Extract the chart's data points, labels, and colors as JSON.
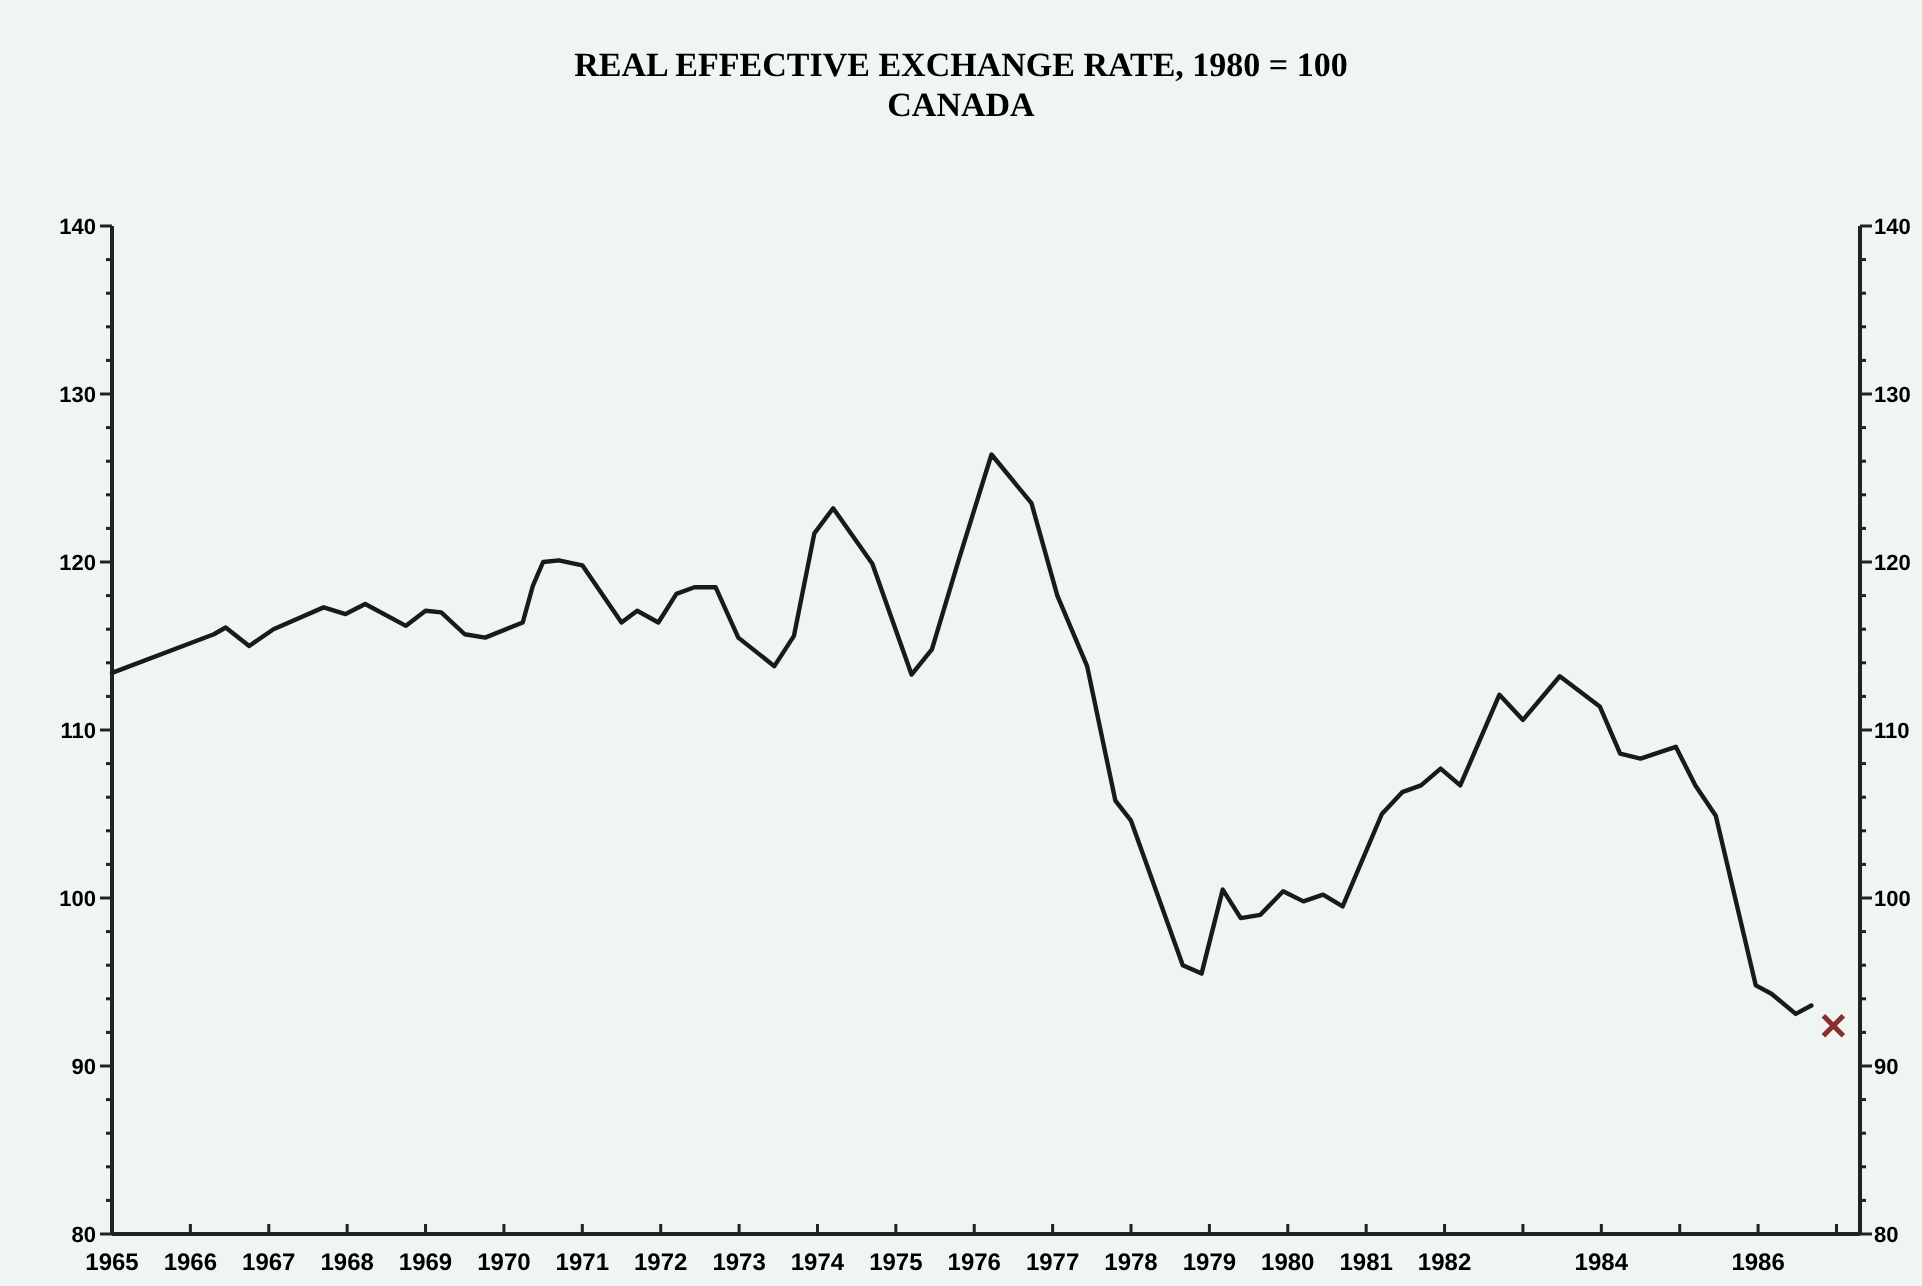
{
  "chart_data": {
    "type": "line",
    "title": "REAL EFFECTIVE EXCHANGE RATE, 1980 = 100",
    "subtitle": "CANADA",
    "xlim": [
      1965,
      1987.3
    ],
    "xticks": [
      {
        "value": 1965,
        "label": "1965"
      },
      {
        "value": 1966,
        "label": "1966"
      },
      {
        "value": 1967,
        "label": "1967"
      },
      {
        "value": 1968,
        "label": "1968"
      },
      {
        "value": 1969,
        "label": "1969"
      },
      {
        "value": 1970,
        "label": "1970"
      },
      {
        "value": 1971,
        "label": "1971"
      },
      {
        "value": 1972,
        "label": "1972"
      },
      {
        "value": 1973,
        "label": "1973"
      },
      {
        "value": 1974,
        "label": "1974"
      },
      {
        "value": 1975,
        "label": "1975"
      },
      {
        "value": 1976,
        "label": "1976"
      },
      {
        "value": 1977,
        "label": "1977"
      },
      {
        "value": 1978,
        "label": "1978"
      },
      {
        "value": 1979,
        "label": "1979"
      },
      {
        "value": 1980,
        "label": "1980"
      },
      {
        "value": 1981,
        "label": "1981"
      },
      {
        "value": 1982,
        "label": "1982"
      },
      {
        "value": 1983,
        "label": null
      },
      {
        "value": 1984,
        "label": "1984"
      },
      {
        "value": 1985,
        "label": null
      },
      {
        "value": 1986,
        "label": "1986"
      },
      {
        "value": 1987,
        "label": null
      }
    ],
    "ylim": [
      80,
      140
    ],
    "yticks": [
      80,
      {
        "value": 82,
        "label": null
      },
      {
        "value": 84,
        "label": null
      },
      {
        "value": 86,
        "label": null
      },
      {
        "value": 88,
        "label": null
      },
      90,
      {
        "value": 92,
        "label": null
      },
      {
        "value": 94,
        "label": null
      },
      {
        "value": 96,
        "label": null
      },
      {
        "value": 98,
        "label": null
      },
      100,
      {
        "value": 102,
        "label": null
      },
      {
        "value": 104,
        "label": null
      },
      {
        "value": 106,
        "label": null
      },
      {
        "value": 108,
        "label": null
      },
      110,
      {
        "value": 112,
        "label": null
      },
      {
        "value": 114,
        "label": null
      },
      {
        "value": 116,
        "label": null
      },
      {
        "value": 118,
        "label": null
      },
      120,
      {
        "value": 122,
        "label": null
      },
      {
        "value": 124,
        "label": null
      },
      {
        "value": 126,
        "label": null
      },
      {
        "value": 128,
        "label": null
      },
      130,
      {
        "value": 132,
        "label": null
      },
      {
        "value": 134,
        "label": null
      },
      {
        "value": 136,
        "label": null
      },
      {
        "value": 138,
        "label": null
      },
      140
    ],
    "y2lim": [
      80,
      140
    ],
    "y2ticks": [
      80,
      {
        "value": 82,
        "label": null
      },
      {
        "value": 84,
        "label": null
      },
      {
        "value": 86,
        "label": null
      },
      {
        "value": 88,
        "label": null
      },
      90,
      {
        "value": 92,
        "label": null
      },
      {
        "value": 94,
        "label": null
      },
      {
        "value": 96,
        "label": null
      },
      {
        "value": 98,
        "label": null
      },
      100,
      {
        "value": 102,
        "label": null
      },
      {
        "value": 104,
        "label": null
      },
      {
        "value": 106,
        "label": null
      },
      {
        "value": 108,
        "label": null
      },
      110,
      {
        "value": 112,
        "label": null
      },
      {
        "value": 114,
        "label": null
      },
      {
        "value": 116,
        "label": null
      },
      {
        "value": 118,
        "label": null
      },
      120,
      {
        "value": 122,
        "label": null
      },
      {
        "value": 124,
        "label": null
      },
      {
        "value": 126,
        "label": null
      },
      {
        "value": 128,
        "label": null
      },
      130,
      {
        "value": 132,
        "label": null
      },
      {
        "value": 134,
        "label": null
      },
      {
        "value": 136,
        "label": null
      },
      {
        "value": 138,
        "label": null
      },
      140
    ],
    "grid": false,
    "series": [
      {
        "color": "#1a1a1a",
        "marker": "none",
        "line_style": "solid",
        "x": [
          1965.0,
          1966.3,
          1966.45,
          1966.75,
          1967.06,
          1967.7,
          1967.98,
          1968.23,
          1968.75,
          1969.0,
          1969.2,
          1969.5,
          1969.76,
          1970.24,
          1970.37,
          1970.5,
          1970.7,
          1971.0,
          1971.5,
          1971.7,
          1971.97,
          1972.2,
          1972.43,
          1972.7,
          1972.99,
          1973.45,
          1973.7,
          1973.96,
          1974.2,
          1974.7,
          1975.2,
          1975.46,
          1975.8,
          1976.22,
          1976.73,
          1977.06,
          1977.44,
          1977.8,
          1978.0,
          1978.66,
          1978.9,
          1979.17,
          1979.4,
          1979.65,
          1979.94,
          1980.2,
          1980.45,
          1980.7,
          1981.2,
          1981.46,
          1981.7,
          1981.95,
          1982.2,
          1982.7,
          1983.0,
          1983.47,
          1983.98,
          1984.24,
          1984.5,
          1984.95,
          1985.2,
          1985.46,
          1985.97,
          1986.17,
          1986.48,
          1986.68
        ],
        "values": [
          113.4,
          115.7,
          116.1,
          115.0,
          116.0,
          117.3,
          116.9,
          117.5,
          116.2,
          117.1,
          117.0,
          115.7,
          115.5,
          116.4,
          118.6,
          120.0,
          120.1,
          119.8,
          116.4,
          117.1,
          116.4,
          118.1,
          118.5,
          118.5,
          115.5,
          113.8,
          115.6,
          121.7,
          123.2,
          119.9,
          113.3,
          114.8,
          120.1,
          126.4,
          123.5,
          118.0,
          113.8,
          105.8,
          104.6,
          96.0,
          95.5,
          100.5,
          98.8,
          99.0,
          100.4,
          99.8,
          100.2,
          99.5,
          105.0,
          106.3,
          106.7,
          107.7,
          106.7,
          112.1,
          110.6,
          113.2,
          111.4,
          108.6,
          108.3,
          109.0,
          106.7,
          104.9,
          94.8,
          94.3,
          93.1,
          93.6
        ]
      },
      {
        "type": "scatter",
        "color": "#8b2e2e",
        "marker": "cross",
        "x": [
          1986.96
        ],
        "values": [
          92.4
        ]
      }
    ]
  }
}
